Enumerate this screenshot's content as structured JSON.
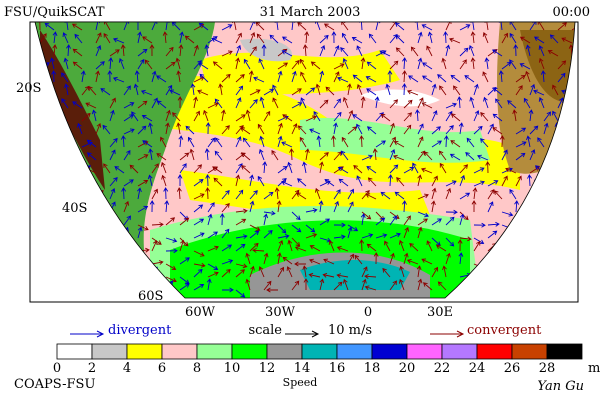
{
  "header": {
    "title": "FSU/QuikSCAT",
    "date": "31 March 2003",
    "time": "00:00"
  },
  "map": {
    "lat_labels": [
      "20S",
      "40S",
      "60S"
    ],
    "lon_labels": [
      "60W",
      "30W",
      "0",
      "30E"
    ]
  },
  "legend": {
    "divergent": "divergent",
    "scale": "scale",
    "scale_value": "10 m/s",
    "convergent": "convergent"
  },
  "colorbar": {
    "ticks": [
      0,
      2,
      4,
      6,
      8,
      10,
      12,
      14,
      16,
      18,
      20,
      22,
      24,
      26,
      28
    ],
    "unit": "m/s",
    "label": "Speed",
    "colors": [
      "#ffffff",
      "#c8c8c8",
      "#ffff00",
      "#ffc8c8",
      "#96ff96",
      "#00ff00",
      "#969696",
      "#00b4b4",
      "#4196ff",
      "#0000d2",
      "#ff64ff",
      "#b478ff",
      "#ff0000",
      "#c84100",
      "#000000"
    ]
  },
  "footer": {
    "left": "COAPS-FSU",
    "right": "Yan Gu"
  }
}
